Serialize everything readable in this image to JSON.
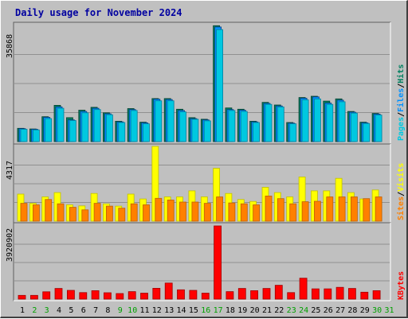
{
  "title": "Daily usage for November 2024",
  "colors": {
    "title": "#0000a0",
    "pages": "#00c8e0",
    "pages_side": "#0080a0",
    "files": "#0090ff",
    "files_side": "#004080",
    "hits": "#008060",
    "hits_side": "#004030",
    "visits": "#ffff00",
    "visits_side": "#c0c000",
    "sites": "#ff8000",
    "sites_side": "#c06000",
    "kbytes": "#ff0000",
    "kbytes_side": "#a00000",
    "weekday": "#000000",
    "weekend": "#00a000"
  },
  "chart_data": [
    {
      "type": "bar",
      "name": "panel-hits",
      "max_label": "35868",
      "legend": [
        "Pages",
        "Files",
        "Hits"
      ],
      "categories": [
        "1",
        "2",
        "3",
        "4",
        "5",
        "6",
        "7",
        "8",
        "9",
        "10",
        "11",
        "12",
        "13",
        "14",
        "15",
        "16",
        "17",
        "18",
        "19",
        "20",
        "21",
        "22",
        "23",
        "24",
        "25",
        "26",
        "27",
        "28",
        "29",
        "30",
        "31"
      ],
      "ylim": [
        0,
        35868
      ],
      "series": [
        {
          "name": "Hits",
          "values": [
            4100,
            3900,
            7700,
            11200,
            7400,
            9700,
            10600,
            8900,
            6300,
            10200,
            6000,
            13300,
            13300,
            10000,
            7400,
            6900,
            35800,
            10400,
            10000,
            6300,
            12100,
            11300,
            5900,
            13600,
            14000,
            12500,
            13200,
            9300,
            6000,
            8700,
            0
          ]
        },
        {
          "name": "Files",
          "values": [
            4000,
            3800,
            7500,
            10700,
            6700,
            9300,
            10300,
            8600,
            6100,
            9900,
            5800,
            13100,
            13000,
            9600,
            7100,
            6700,
            35400,
            9900,
            9700,
            6100,
            11800,
            11000,
            5700,
            13400,
            13800,
            11900,
            12800,
            9100,
            5800,
            8500,
            0
          ]
        },
        {
          "name": "Pages",
          "values": [
            3800,
            3600,
            7100,
            10300,
            6500,
            8900,
            9900,
            8300,
            5900,
            9600,
            5500,
            12600,
            12600,
            9200,
            6900,
            6400,
            34600,
            9600,
            9300,
            5900,
            11500,
            10700,
            5500,
            12900,
            13200,
            11500,
            12300,
            8800,
            5600,
            8200,
            0
          ]
        }
      ]
    },
    {
      "type": "bar",
      "name": "panel-visits",
      "max_label": "4317",
      "legend": [
        "Sites",
        "Visits"
      ],
      "categories": [
        "1",
        "2",
        "3",
        "4",
        "5",
        "6",
        "7",
        "8",
        "9",
        "10",
        "11",
        "12",
        "13",
        "14",
        "15",
        "16",
        "17",
        "18",
        "19",
        "20",
        "21",
        "22",
        "23",
        "24",
        "25",
        "26",
        "27",
        "28",
        "29",
        "30",
        "31"
      ],
      "ylim": [
        0,
        4317
      ],
      "series": [
        {
          "name": "Visits",
          "values": [
            1560,
            1030,
            1400,
            1650,
            940,
            880,
            1600,
            1000,
            870,
            1560,
            1280,
            4317,
            1400,
            1400,
            1750,
            1400,
            3050,
            1600,
            1250,
            1140,
            1950,
            1650,
            1400,
            2550,
            1750,
            1750,
            2470,
            1650,
            1280,
            1800,
            0
          ]
        },
        {
          "name": "Sites",
          "values": [
            1030,
            940,
            1250,
            1000,
            800,
            650,
            1030,
            870,
            750,
            1000,
            940,
            1320,
            1220,
            1100,
            1100,
            1030,
            1400,
            1050,
            1000,
            940,
            1450,
            1300,
            1000,
            1120,
            1150,
            1400,
            1400,
            1400,
            1300,
            1400,
            0
          ]
        }
      ]
    },
    {
      "type": "bar",
      "name": "panel-kbytes",
      "max_label": "3920902",
      "legend": [
        "KBytes"
      ],
      "categories": [
        "1",
        "2",
        "3",
        "4",
        "5",
        "6",
        "7",
        "8",
        "9",
        "10",
        "11",
        "12",
        "13",
        "14",
        "15",
        "16",
        "17",
        "18",
        "19",
        "20",
        "21",
        "22",
        "23",
        "24",
        "25",
        "26",
        "27",
        "28",
        "29",
        "30",
        "31"
      ],
      "ylim": [
        0,
        3920902
      ],
      "series": [
        {
          "name": "KBytes",
          "values": [
            200000,
            200000,
            390000,
            570000,
            470000,
            350000,
            450000,
            340000,
            300000,
            400000,
            320000,
            580000,
            860000,
            500000,
            470000,
            320000,
            3920902,
            400000,
            570000,
            450000,
            570000,
            740000,
            350000,
            1120000,
            550000,
            550000,
            630000,
            570000,
            370000,
            450000,
            0
          ]
        }
      ]
    }
  ],
  "days": [
    {
      "label": "1",
      "weekend": false
    },
    {
      "label": "2",
      "weekend": true
    },
    {
      "label": "3",
      "weekend": true
    },
    {
      "label": "4",
      "weekend": false
    },
    {
      "label": "5",
      "weekend": false
    },
    {
      "label": "6",
      "weekend": false
    },
    {
      "label": "7",
      "weekend": false
    },
    {
      "label": "8",
      "weekend": false
    },
    {
      "label": "9",
      "weekend": true
    },
    {
      "label": "10",
      "weekend": true
    },
    {
      "label": "11",
      "weekend": false
    },
    {
      "label": "12",
      "weekend": false
    },
    {
      "label": "13",
      "weekend": false
    },
    {
      "label": "14",
      "weekend": false
    },
    {
      "label": "15",
      "weekend": false
    },
    {
      "label": "16",
      "weekend": true
    },
    {
      "label": "17",
      "weekend": true
    },
    {
      "label": "18",
      "weekend": false
    },
    {
      "label": "19",
      "weekend": false
    },
    {
      "label": "20",
      "weekend": false
    },
    {
      "label": "21",
      "weekend": false
    },
    {
      "label": "22",
      "weekend": false
    },
    {
      "label": "23",
      "weekend": true
    },
    {
      "label": "24",
      "weekend": true
    },
    {
      "label": "25",
      "weekend": false
    },
    {
      "label": "26",
      "weekend": false
    },
    {
      "label": "27",
      "weekend": false
    },
    {
      "label": "28",
      "weekend": false
    },
    {
      "label": "29",
      "weekend": false
    },
    {
      "label": "30",
      "weekend": true
    },
    {
      "label": "31",
      "weekend": true
    }
  ]
}
